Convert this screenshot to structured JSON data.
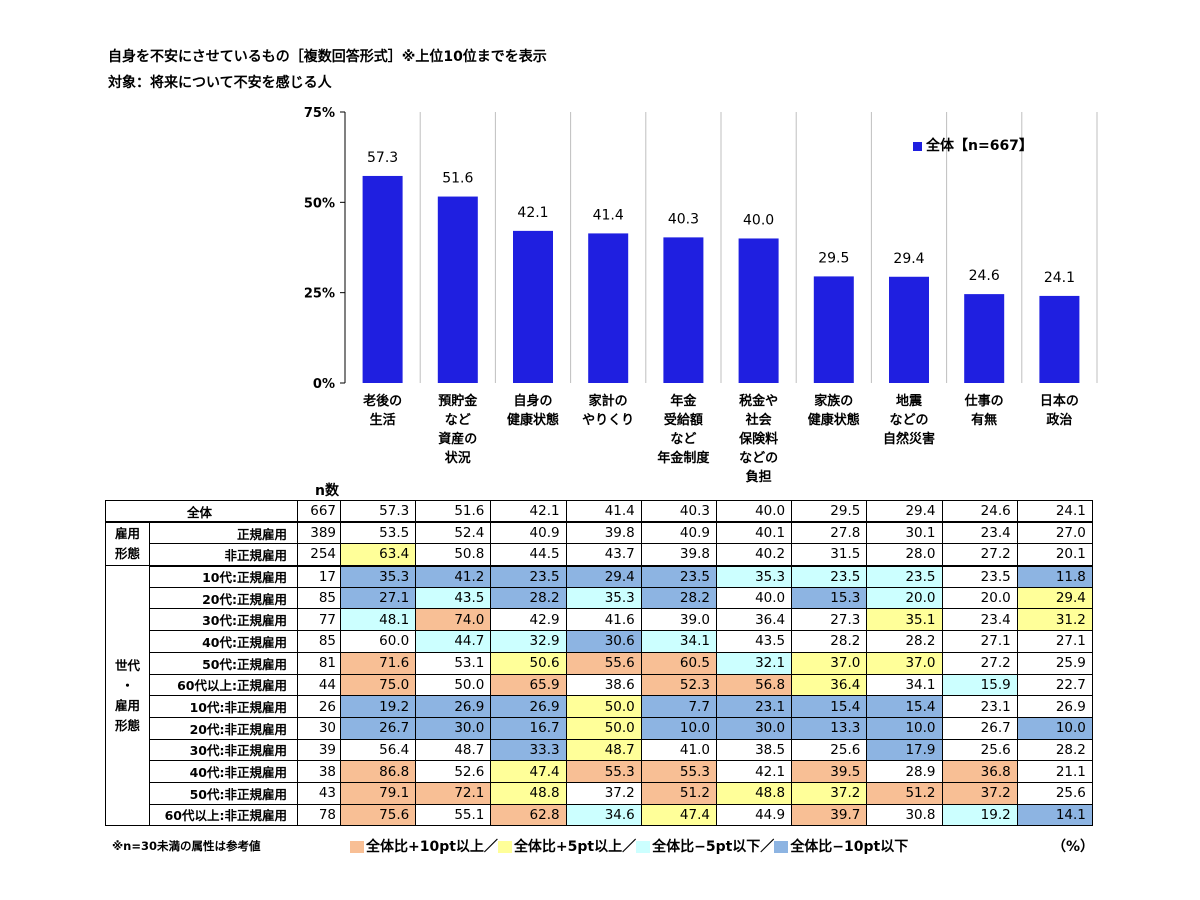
{
  "title_line1": "自身を不安にさせているもの［複数回答形式］※上位10位までを表示",
  "title_line2": "対象：将来について不安を感じる人",
  "legend_label": "全体【n=667】",
  "n_header": "n数",
  "unit_label": "（%）",
  "footnote": "※n=30未満の属性は参考値",
  "color_key": [
    {
      "label": "全体比+10pt以上／",
      "color": "#f8bf95"
    },
    {
      "label": "全体比+5pt以上／",
      "color": "#ffff99"
    },
    {
      "label": "全体比−5pt以下／",
      "color": "#ccffff"
    },
    {
      "label": "全体比−10pt以下",
      "color": "#8db4e2"
    }
  ],
  "colors": {
    "bar": "#1f1fe0",
    "orange": "#f8bf95",
    "yellow": "#ffff99",
    "cyan": "#ccffff",
    "blue": "#8db4e2"
  },
  "chart_data": {
    "type": "bar",
    "categories": [
      "老後の\n生活",
      "預貯金\nなど\n資産の\n状況",
      "自身の\n健康状態",
      "家計の\nやりくり",
      "年金\n受給額\nなど\n年金制度",
      "税金や\n社会\n保険料\nなどの\n負担",
      "家族の\n健康状態",
      "地震\nなどの\n自然災害",
      "仕事の\n有無",
      "日本の\n政治"
    ],
    "series": [
      {
        "name": "全体【n=667】",
        "values": [
          57.3,
          51.6,
          42.1,
          41.4,
          40.3,
          40.0,
          29.5,
          29.4,
          24.6,
          24.1
        ]
      }
    ],
    "yticks": [
      "0%",
      "25%",
      "50%",
      "75%"
    ],
    "ylim": [
      0,
      75
    ]
  },
  "table": {
    "rows": [
      {
        "group": "",
        "label": "全体",
        "n": "667",
        "values": [
          "57.3",
          "51.6",
          "42.1",
          "41.4",
          "40.3",
          "40.0",
          "29.5",
          "29.4",
          "24.6",
          "24.1"
        ],
        "colors": [
          "",
          "",
          "",
          "",
          "",
          "",
          "",
          "",
          "",
          ""
        ]
      },
      {
        "group": "雇用\n形態",
        "label": "正規雇用",
        "n": "389",
        "values": [
          "53.5",
          "52.4",
          "40.9",
          "39.8",
          "40.9",
          "40.1",
          "27.8",
          "30.1",
          "23.4",
          "27.0"
        ],
        "colors": [
          "",
          "",
          "",
          "",
          "",
          "",
          "",
          "",
          "",
          ""
        ]
      },
      {
        "group": "",
        "label": "非正規雇用",
        "n": "254",
        "values": [
          "63.4",
          "50.8",
          "44.5",
          "43.7",
          "39.8",
          "40.2",
          "31.5",
          "28.0",
          "27.2",
          "20.1"
        ],
        "colors": [
          "yellow",
          "",
          "",
          "",
          "",
          "",
          "",
          "",
          "",
          ""
        ]
      },
      {
        "group": "世代\n・\n雇用\n形態",
        "label": "10代:正規雇用",
        "n": "17",
        "values": [
          "35.3",
          "41.2",
          "23.5",
          "29.4",
          "23.5",
          "35.3",
          "23.5",
          "23.5",
          "23.5",
          "11.8"
        ],
        "colors": [
          "blue",
          "blue",
          "blue",
          "blue",
          "blue",
          "cyan",
          "cyan",
          "cyan",
          "",
          "blue"
        ]
      },
      {
        "group": "",
        "label": "20代:正規雇用",
        "n": "85",
        "values": [
          "27.1",
          "43.5",
          "28.2",
          "35.3",
          "28.2",
          "40.0",
          "15.3",
          "20.0",
          "20.0",
          "29.4"
        ],
        "colors": [
          "blue",
          "cyan",
          "blue",
          "cyan",
          "blue",
          "",
          "blue",
          "cyan",
          "",
          "yellow"
        ]
      },
      {
        "group": "",
        "label": "30代:正規雇用",
        "n": "77",
        "values": [
          "48.1",
          "74.0",
          "42.9",
          "41.6",
          "39.0",
          "36.4",
          "27.3",
          "35.1",
          "23.4",
          "31.2"
        ],
        "colors": [
          "cyan",
          "orange",
          "",
          "",
          "",
          "",
          "",
          "yellow",
          "",
          "yellow"
        ]
      },
      {
        "group": "",
        "label": "40代:正規雇用",
        "n": "85",
        "values": [
          "60.0",
          "44.7",
          "32.9",
          "30.6",
          "34.1",
          "43.5",
          "28.2",
          "28.2",
          "27.1",
          "27.1"
        ],
        "colors": [
          "",
          "cyan",
          "cyan",
          "blue",
          "cyan",
          "",
          "",
          "",
          "",
          ""
        ]
      },
      {
        "group": "",
        "label": "50代:正規雇用",
        "n": "81",
        "values": [
          "71.6",
          "53.1",
          "50.6",
          "55.6",
          "60.5",
          "32.1",
          "37.0",
          "37.0",
          "27.2",
          "25.9"
        ],
        "colors": [
          "orange",
          "",
          "yellow",
          "orange",
          "orange",
          "cyan",
          "yellow",
          "yellow",
          "",
          ""
        ]
      },
      {
        "group": "",
        "label": "60代以上:正規雇用",
        "n": "44",
        "values": [
          "75.0",
          "50.0",
          "65.9",
          "38.6",
          "52.3",
          "56.8",
          "36.4",
          "34.1",
          "15.9",
          "22.7"
        ],
        "colors": [
          "orange",
          "",
          "orange",
          "",
          "orange",
          "orange",
          "yellow",
          "",
          "cyan",
          ""
        ]
      },
      {
        "group": "",
        "label": "10代:非正規雇用",
        "n": "26",
        "values": [
          "19.2",
          "26.9",
          "26.9",
          "50.0",
          "7.7",
          "23.1",
          "15.4",
          "15.4",
          "23.1",
          "26.9"
        ],
        "colors": [
          "blue",
          "blue",
          "blue",
          "yellow",
          "blue",
          "blue",
          "blue",
          "blue",
          "",
          ""
        ]
      },
      {
        "group": "",
        "label": "20代:非正規雇用",
        "n": "30",
        "values": [
          "26.7",
          "30.0",
          "16.7",
          "50.0",
          "10.0",
          "30.0",
          "13.3",
          "10.0",
          "26.7",
          "10.0"
        ],
        "colors": [
          "blue",
          "blue",
          "blue",
          "yellow",
          "blue",
          "blue",
          "blue",
          "blue",
          "",
          "blue"
        ]
      },
      {
        "group": "",
        "label": "30代:非正規雇用",
        "n": "39",
        "values": [
          "56.4",
          "48.7",
          "33.3",
          "48.7",
          "41.0",
          "38.5",
          "25.6",
          "17.9",
          "25.6",
          "28.2"
        ],
        "colors": [
          "",
          "",
          "blue",
          "yellow",
          "",
          "",
          "",
          "blue",
          "",
          ""
        ]
      },
      {
        "group": "",
        "label": "40代:非正規雇用",
        "n": "38",
        "values": [
          "86.8",
          "52.6",
          "47.4",
          "55.3",
          "55.3",
          "42.1",
          "39.5",
          "28.9",
          "36.8",
          "21.1"
        ],
        "colors": [
          "orange",
          "",
          "yellow",
          "orange",
          "orange",
          "",
          "orange",
          "",
          "orange",
          ""
        ]
      },
      {
        "group": "",
        "label": "50代:非正規雇用",
        "n": "43",
        "values": [
          "79.1",
          "72.1",
          "48.8",
          "37.2",
          "51.2",
          "48.8",
          "37.2",
          "51.2",
          "37.2",
          "25.6"
        ],
        "colors": [
          "orange",
          "orange",
          "yellow",
          "",
          "orange",
          "yellow",
          "yellow",
          "orange",
          "orange",
          ""
        ]
      },
      {
        "group": "",
        "label": "60代以上:非正規雇用",
        "n": "78",
        "values": [
          "75.6",
          "55.1",
          "62.8",
          "34.6",
          "47.4",
          "44.9",
          "39.7",
          "30.8",
          "19.2",
          "14.1"
        ],
        "colors": [
          "orange",
          "",
          "orange",
          "cyan",
          "yellow",
          "",
          "orange",
          "",
          "cyan",
          "blue"
        ]
      }
    ]
  }
}
